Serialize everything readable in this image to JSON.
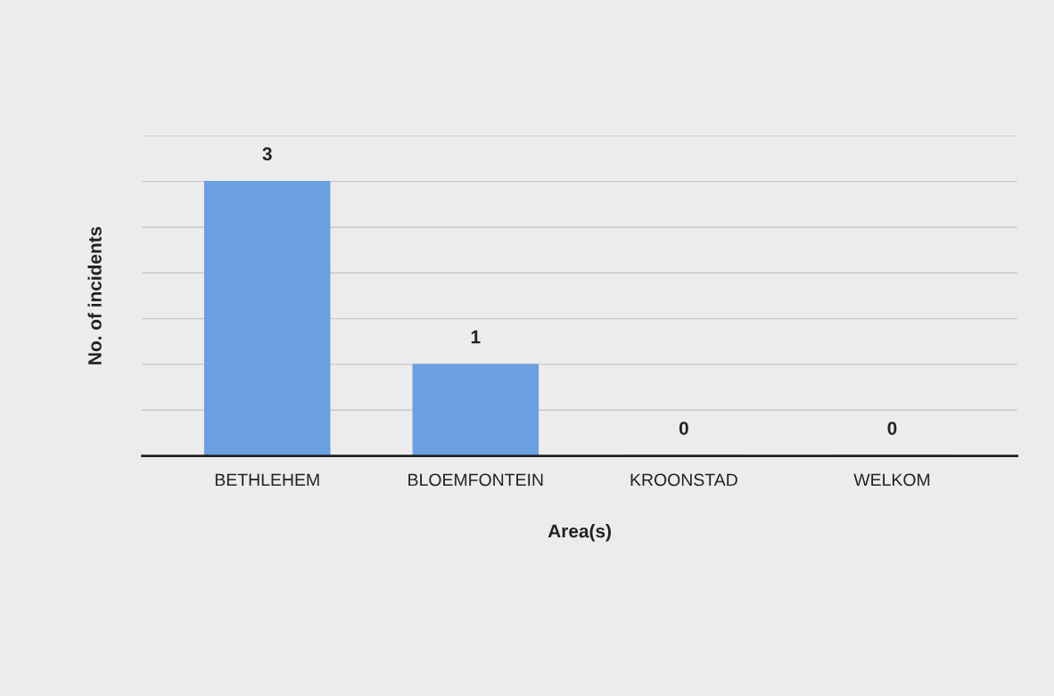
{
  "chart_data": {
    "type": "bar",
    "xlabel": "Area(s)",
    "ylabel": "No. of incidents",
    "categories": [
      "BETHLEHEM",
      "BLOEMFONTEIN",
      "KROONSTAD",
      "WELKOM"
    ],
    "values": [
      3,
      1,
      0,
      0
    ],
    "color": "#6a9fe0",
    "data_labels": true,
    "ylim": [
      0,
      3.5
    ],
    "yticks": [
      {
        "value": 0,
        "label": null
      },
      {
        "value": 0.5,
        "label": null
      },
      {
        "value": 1,
        "label": null
      },
      {
        "value": 1.5,
        "label": null
      },
      {
        "value": 2,
        "label": null
      },
      {
        "value": 2.5,
        "label": null
      },
      {
        "value": 3,
        "label": null
      },
      {
        "value": 3.5,
        "label": null
      }
    ],
    "tick_labels": "x",
    "grid": "y",
    "legend": false
  }
}
